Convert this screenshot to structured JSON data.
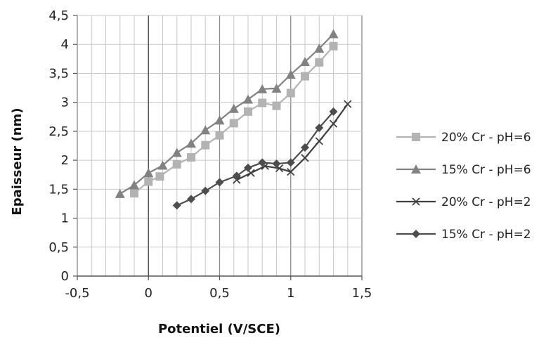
{
  "chart_data": {
    "type": "line",
    "xlabel": "Potentiel (V/SCE)",
    "ylabel": "Epaisseur (nm)",
    "xlim": [
      -0.5,
      1.5
    ],
    "ylim": [
      0,
      4.5
    ],
    "x_ticks": [
      "-0,5",
      "0",
      "0,5",
      "1",
      "1,5"
    ],
    "x_tick_values": [
      -0.5,
      0,
      0.5,
      1,
      1.5
    ],
    "y_ticks": [
      "0",
      "0,5",
      "1",
      "1,5",
      "2",
      "2,5",
      "3",
      "3,5",
      "4",
      "4,5"
    ],
    "y_tick_values": [
      0,
      0.5,
      1,
      1.5,
      2,
      2.5,
      3,
      3.5,
      4,
      4.5
    ],
    "grid": true,
    "legend_position": "right",
    "series": [
      {
        "name": "20% Cr - pH=6",
        "color": "#b3b3b3",
        "marker": "square",
        "x": [
          -0.1,
          0.0,
          0.08,
          0.2,
          0.3,
          0.4,
          0.5,
          0.6,
          0.7,
          0.8,
          0.9,
          1.0,
          1.1,
          1.2,
          1.3
        ],
        "y": [
          1.43,
          1.63,
          1.72,
          1.93,
          2.05,
          2.26,
          2.43,
          2.64,
          2.84,
          2.99,
          2.94,
          3.16,
          3.45,
          3.69,
          3.97
        ]
      },
      {
        "name": "15% Cr - pH=6",
        "color": "#828282",
        "marker": "triangle",
        "x": [
          -0.2,
          -0.1,
          0.0,
          0.1,
          0.2,
          0.3,
          0.4,
          0.5,
          0.6,
          0.7,
          0.8,
          0.9,
          1.0,
          1.1,
          1.2,
          1.3
        ],
        "y": [
          1.42,
          1.57,
          1.78,
          1.91,
          2.13,
          2.29,
          2.52,
          2.69,
          2.89,
          3.05,
          3.23,
          3.24,
          3.48,
          3.7,
          3.93,
          4.18
        ]
      },
      {
        "name": "20% Cr - pH=2",
        "color": "#3f3f3f",
        "marker": "x",
        "x": [
          0.62,
          0.72,
          0.82,
          0.92,
          1.0,
          1.1,
          1.2,
          1.3,
          1.4
        ],
        "y": [
          1.66,
          1.78,
          1.9,
          1.86,
          1.8,
          2.04,
          2.33,
          2.63,
          2.97
        ]
      },
      {
        "name": "15% Cr - pH=2",
        "color": "#4d4d4d",
        "marker": "diamond",
        "x": [
          0.2,
          0.3,
          0.4,
          0.5,
          0.62,
          0.7,
          0.8,
          0.9,
          1.0,
          1.1,
          1.2,
          1.3
        ],
        "y": [
          1.22,
          1.33,
          1.47,
          1.62,
          1.73,
          1.87,
          1.96,
          1.94,
          1.96,
          2.22,
          2.56,
          2.84
        ]
      }
    ]
  }
}
